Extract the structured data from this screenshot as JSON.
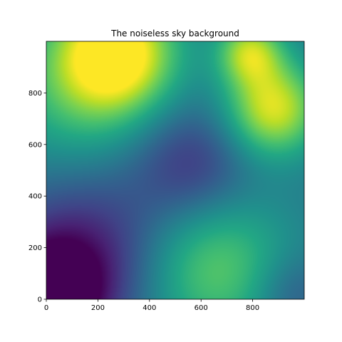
{
  "chart_data": {
    "type": "heatmap",
    "title": "The noiseless sky background",
    "xlabel": "",
    "ylabel": "",
    "xlim": [
      0,
      1000
    ],
    "ylim": [
      0,
      1000
    ],
    "xticks": [
      0,
      200,
      400,
      600,
      800
    ],
    "yticks": [
      0,
      200,
      400,
      600,
      800
    ],
    "colormap": "viridis",
    "colorbar": false,
    "grid": false,
    "blobs": [
      {
        "x": 0,
        "y": 0,
        "amplitude": -0.55,
        "sigma": 150
      },
      {
        "x": 160,
        "y": 180,
        "amplitude": -0.3,
        "sigma": 220
      },
      {
        "x": 560,
        "y": 520,
        "amplitude": -0.25,
        "sigma": 160
      },
      {
        "x": 270,
        "y": 960,
        "amplitude": 0.65,
        "sigma": 160
      },
      {
        "x": 880,
        "y": 740,
        "amplitude": 0.55,
        "sigma": 130
      },
      {
        "x": 790,
        "y": 960,
        "amplitude": 0.45,
        "sigma": 90
      },
      {
        "x": 650,
        "y": 120,
        "amplitude": 0.35,
        "sigma": 210
      },
      {
        "x": 120,
        "y": 800,
        "amplitude": 0.25,
        "sigma": 220
      },
      {
        "x": 950,
        "y": 20,
        "amplitude": -0.15,
        "sigma": 110
      }
    ],
    "base_level": 0.4,
    "value_range": [
      0,
      1
    ]
  },
  "colors": {
    "axis": "#000000",
    "background": "#ffffff"
  }
}
